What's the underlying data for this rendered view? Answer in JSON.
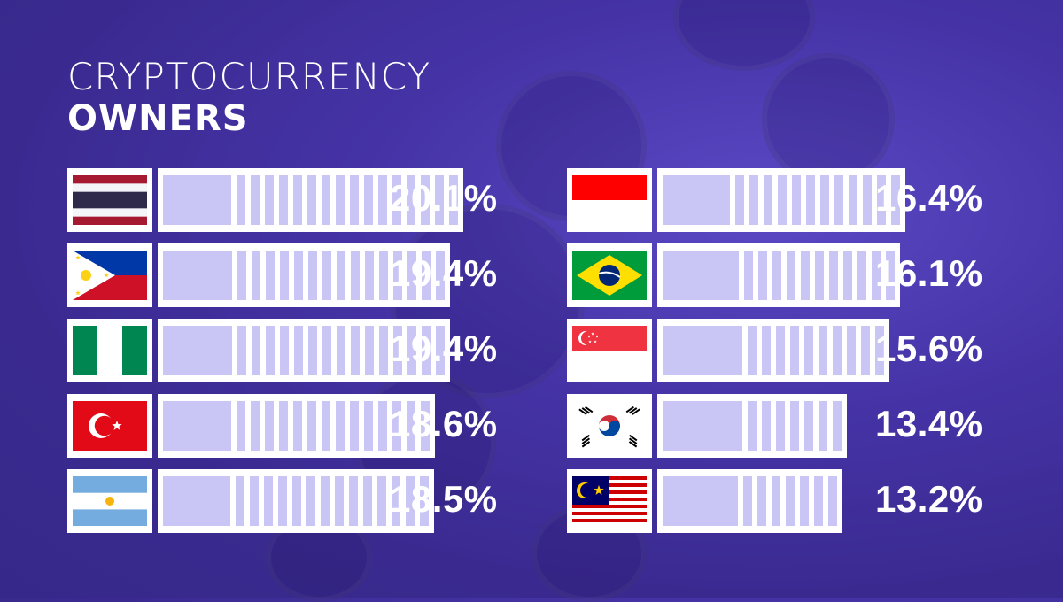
{
  "title": {
    "line1": "CRYPTOCURRENCY",
    "line2": "OWNERS"
  },
  "colors": {
    "background": "#4634a8",
    "bar_fill": "#c9c5f5",
    "box": "#ffffff",
    "text": "#ffffff"
  },
  "chart_data": {
    "type": "bar",
    "title": "CRYPTOCURRENCY OWNERS",
    "unit": "%",
    "categories": [
      "thailand-flag",
      "philippines-flag",
      "nigeria-flag",
      "turkey-flag",
      "argentina-flag",
      "indonesia-flag",
      "brazil-flag",
      "singapore-flag",
      "south-korea-flag",
      "malaysia-flag"
    ],
    "values": [
      20.1,
      19.4,
      19.4,
      18.6,
      18.5,
      16.4,
      16.1,
      15.6,
      13.4,
      13.2
    ],
    "labels": [
      "20.1%",
      "19.4%",
      "19.4%",
      "18.6%",
      "18.5%",
      "16.4%",
      "16.1%",
      "15.6%",
      "13.4%",
      "13.2%"
    ],
    "xlim": [
      0,
      20.1
    ]
  }
}
